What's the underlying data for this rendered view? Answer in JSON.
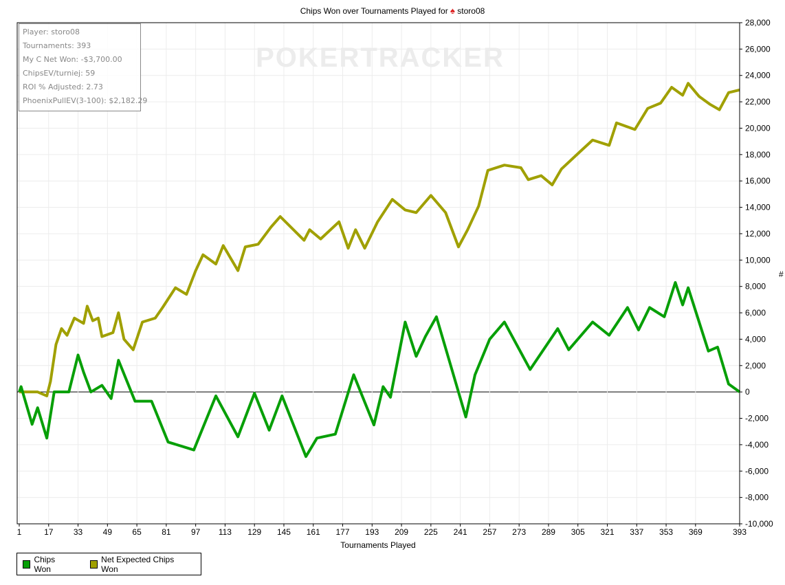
{
  "title": {
    "text": "Chips Won over Tournaments Played for",
    "player": "storo08",
    "icon": "pokerstars-spade-icon"
  },
  "watermark": "POKERTRACKER",
  "info_box": [
    "Player: storo08",
    "Tournaments: 393",
    "My C Net Won: -$3,700.00",
    "ChipsEV/turniej: 59",
    "ROI % Adjusted: 2.73",
    "PhoenixPullEV(3-100): $2,182.29"
  ],
  "chart_data": {
    "type": "line",
    "title": "Chips Won over Tournaments Played for storo08",
    "xlabel": "Tournaments Played",
    "ylabel": "#",
    "xlim": [
      1,
      393
    ],
    "ylim": [
      -10000,
      28000
    ],
    "xticks": [
      1,
      17,
      33,
      49,
      65,
      81,
      97,
      113,
      129,
      145,
      161,
      177,
      193,
      209,
      225,
      241,
      257,
      273,
      289,
      305,
      321,
      337,
      353,
      369,
      393
    ],
    "yticks": [
      -10000,
      -8000,
      -6000,
      -4000,
      -2000,
      0,
      2000,
      4000,
      6000,
      8000,
      10000,
      12000,
      14000,
      16000,
      18000,
      20000,
      22000,
      24000,
      26000,
      28000
    ],
    "ytick_labels": [
      "-10,000",
      "-8,000",
      "-6,000",
      "-4,000",
      "-2,000",
      "0",
      "2,000",
      "4,000",
      "6,000",
      "8,000",
      "10,000",
      "12,000",
      "14,000",
      "16,000",
      "18,000",
      "20,000",
      "22,000",
      "24,000",
      "26,000",
      "28,000"
    ],
    "grid": true,
    "legend_position": "bottom-left",
    "series": [
      {
        "name": "Chips Won",
        "color": "#079f07",
        "points": [
          [
            1,
            0
          ],
          [
            2,
            400
          ],
          [
            8,
            -2450
          ],
          [
            11,
            -1200
          ],
          [
            16,
            -3500
          ],
          [
            20,
            0
          ],
          [
            28,
            0
          ],
          [
            33,
            2800
          ],
          [
            36,
            1500
          ],
          [
            40,
            0
          ],
          [
            46,
            500
          ],
          [
            51,
            -500
          ],
          [
            55,
            2400
          ],
          [
            64,
            -700
          ],
          [
            73,
            -700
          ],
          [
            82,
            -3800
          ],
          [
            96,
            -4400
          ],
          [
            108,
            -300
          ],
          [
            120,
            -3400
          ],
          [
            129,
            -100
          ],
          [
            137,
            -2900
          ],
          [
            144,
            -300
          ],
          [
            157,
            -4900
          ],
          [
            163,
            -3500
          ],
          [
            173,
            -3200
          ],
          [
            183,
            1300
          ],
          [
            194,
            -2500
          ],
          [
            199,
            400
          ],
          [
            203,
            -400
          ],
          [
            211,
            5300
          ],
          [
            217,
            2700
          ],
          [
            222,
            4200
          ],
          [
            228,
            5700
          ],
          [
            244,
            -1900
          ],
          [
            249,
            1300
          ],
          [
            257,
            4000
          ],
          [
            265,
            5300
          ],
          [
            279,
            1700
          ],
          [
            294,
            4800
          ],
          [
            300,
            3200
          ],
          [
            313,
            5300
          ],
          [
            322,
            4300
          ],
          [
            332,
            6400
          ],
          [
            338,
            4700
          ],
          [
            344,
            6400
          ],
          [
            352,
            5700
          ],
          [
            358,
            8300
          ],
          [
            362,
            6600
          ],
          [
            365,
            7900
          ],
          [
            376,
            3100
          ],
          [
            381,
            3400
          ],
          [
            387,
            600
          ],
          [
            393,
            0
          ]
        ]
      },
      {
        "name": "Net Expected Chips Won",
        "color": "#a0a000",
        "points": [
          [
            1,
            0
          ],
          [
            6,
            0
          ],
          [
            11,
            0
          ],
          [
            16,
            -300
          ],
          [
            18,
            800
          ],
          [
            21,
            3600
          ],
          [
            24,
            4800
          ],
          [
            27,
            4300
          ],
          [
            31,
            5600
          ],
          [
            36,
            5200
          ],
          [
            38,
            6500
          ],
          [
            41,
            5400
          ],
          [
            44,
            5600
          ],
          [
            46,
            4200
          ],
          [
            52,
            4500
          ],
          [
            55,
            6000
          ],
          [
            58,
            4000
          ],
          [
            63,
            3200
          ],
          [
            68,
            5300
          ],
          [
            75,
            5600
          ],
          [
            79,
            6400
          ],
          [
            86,
            7900
          ],
          [
            92,
            7400
          ],
          [
            97,
            9200
          ],
          [
            101,
            10400
          ],
          [
            108,
            9700
          ],
          [
            112,
            11100
          ],
          [
            120,
            9200
          ],
          [
            124,
            11000
          ],
          [
            131,
            11200
          ],
          [
            138,
            12500
          ],
          [
            143,
            13300
          ],
          [
            156,
            11500
          ],
          [
            159,
            12300
          ],
          [
            165,
            11600
          ],
          [
            175,
            12900
          ],
          [
            180,
            10900
          ],
          [
            184,
            12300
          ],
          [
            189,
            10900
          ],
          [
            196,
            12900
          ],
          [
            204,
            14600
          ],
          [
            211,
            13800
          ],
          [
            217,
            13600
          ],
          [
            225,
            14900
          ],
          [
            233,
            13600
          ],
          [
            240,
            11000
          ],
          [
            245,
            12300
          ],
          [
            251,
            14100
          ],
          [
            256,
            16800
          ],
          [
            265,
            17200
          ],
          [
            274,
            17000
          ],
          [
            278,
            16100
          ],
          [
            285,
            16400
          ],
          [
            291,
            15700
          ],
          [
            296,
            16900
          ],
          [
            306,
            18200
          ],
          [
            313,
            19100
          ],
          [
            322,
            18700
          ],
          [
            326,
            20400
          ],
          [
            336,
            19900
          ],
          [
            343,
            21500
          ],
          [
            350,
            21900
          ],
          [
            356,
            23100
          ],
          [
            362,
            22500
          ],
          [
            365,
            23400
          ],
          [
            371,
            22400
          ],
          [
            377,
            21800
          ],
          [
            382,
            21400
          ],
          [
            387,
            22700
          ],
          [
            393,
            22900
          ]
        ]
      }
    ]
  }
}
